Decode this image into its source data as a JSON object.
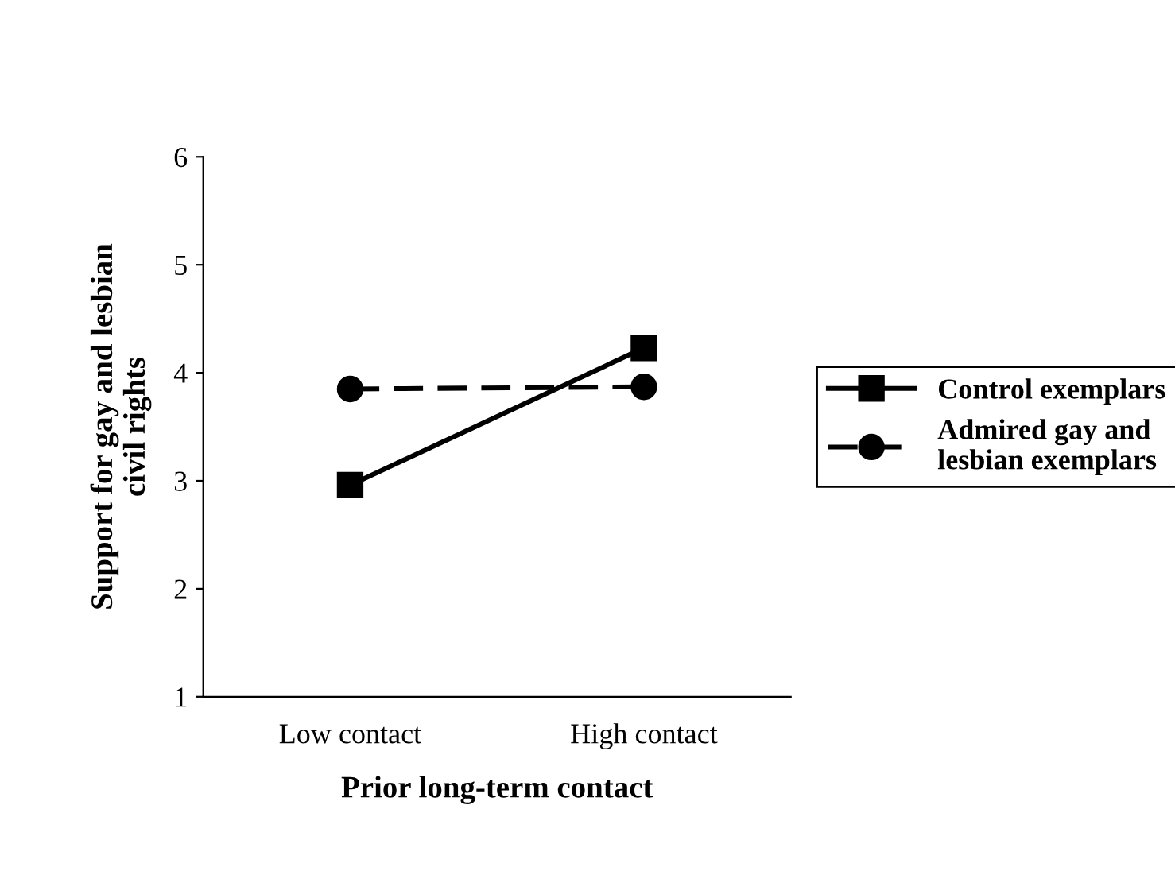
{
  "chart_data": {
    "type": "line",
    "xlabel": "Prior long-term contact",
    "ylabel": "Support for gay and lesbian\ncivil rights",
    "categories": [
      "Low contact",
      "High contact"
    ],
    "series": [
      {
        "name": "Control exemplars",
        "color": "#000000",
        "values": [
          2.96,
          4.23
        ],
        "marker": "square",
        "line_style": "solid"
      },
      {
        "name": "Admired gay and\nlesbian exemplars",
        "color": "#000000",
        "values": [
          3.85,
          3.87
        ],
        "marker": "circle",
        "line_style": "dashed"
      }
    ],
    "ylim": [
      1,
      6
    ],
    "yticks": [
      1,
      2,
      3,
      4,
      5,
      6
    ],
    "grid": false,
    "legend": "right"
  }
}
